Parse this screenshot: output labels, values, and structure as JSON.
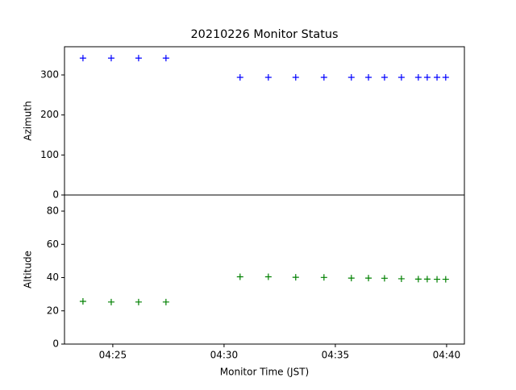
{
  "chart_data": [
    {
      "type": "scatter",
      "title": "20210226 Monitor Status",
      "ylabel": "Azimuth",
      "x": [
        263.66,
        264.93,
        266.16,
        267.39,
        270.72,
        271.99,
        273.22,
        274.49,
        275.72,
        276.49,
        277.21,
        277.97,
        278.73,
        279.13,
        279.57,
        279.96
      ],
      "xlim": [
        262.83,
        280.8
      ],
      "series": [
        {
          "color": "#0000ff",
          "marker": "+",
          "values": [
            342,
            342,
            342,
            342,
            294,
            294,
            294,
            294,
            294,
            294,
            294,
            294,
            294,
            294,
            294,
            294
          ]
        }
      ],
      "ylim": [
        0,
        370.5
      ],
      "yticks": [
        0,
        100,
        200,
        300
      ]
    },
    {
      "type": "scatter",
      "ylabel": "Altitude",
      "xlabel": "Monitor Time (JST)",
      "x": [
        263.66,
        264.93,
        266.16,
        267.39,
        270.72,
        271.99,
        273.22,
        274.49,
        275.72,
        276.49,
        277.21,
        277.97,
        278.73,
        279.13,
        279.57,
        279.96
      ],
      "xlim": [
        262.83,
        280.8
      ],
      "xticks": [
        {
          "value": 265,
          "label": "04:25"
        },
        {
          "value": 270,
          "label": "04:30"
        },
        {
          "value": 275,
          "label": "04:35"
        },
        {
          "value": 280,
          "label": "04:40"
        }
      ],
      "series": [
        {
          "color": "#008000",
          "marker": "+",
          "values": [
            25.7,
            25.3,
            25.3,
            25.3,
            40.5,
            40.5,
            40.2,
            40.1,
            39.7,
            39.7,
            39.6,
            39.3,
            39.1,
            39.1,
            39.0,
            39.0
          ]
        }
      ],
      "ylim": [
        0,
        89.7
      ],
      "yticks": [
        0,
        20,
        40,
        60,
        80
      ]
    }
  ]
}
